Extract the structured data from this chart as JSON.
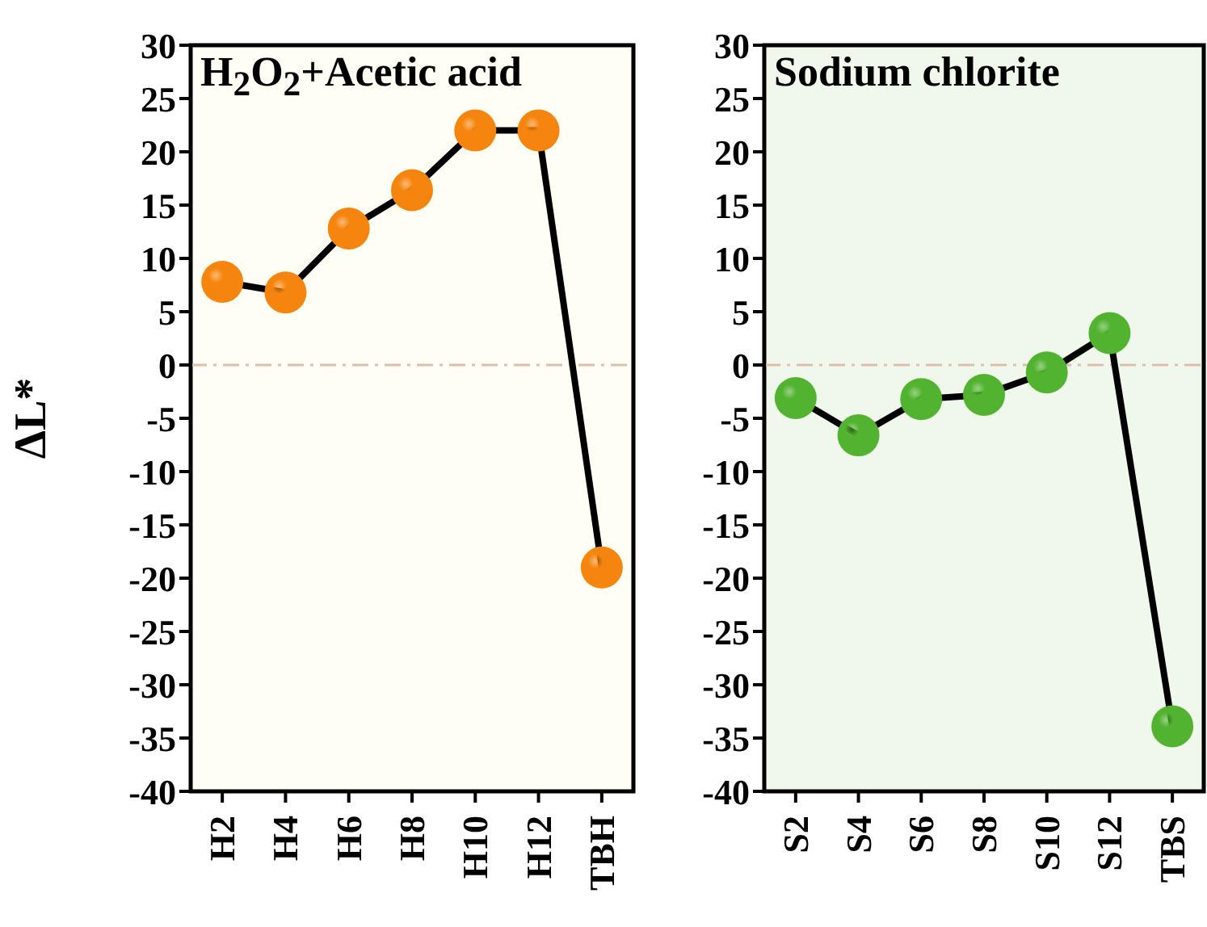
{
  "chart_data": [
    {
      "type": "line",
      "title": "H$_{2}$O$_{2}$+Acetic acid",
      "ylabel": "ΔL*",
      "categories": [
        "H2",
        "H4",
        "H6",
        "H8",
        "H10",
        "H12",
        "TBH"
      ],
      "series": [
        {
          "color": "#f5850f",
          "values": [
            7.8,
            6.8,
            12.8,
            16.4,
            22,
            22,
            -19
          ]
        }
      ],
      "ylim": [
        -40,
        30
      ],
      "yticks": [
        -40,
        -35,
        -30,
        -25,
        -20,
        -15,
        -10,
        -5,
        0,
        5,
        10,
        15,
        20,
        25,
        30
      ],
      "legend": false,
      "marker": "circle",
      "line_style": "solid",
      "ref_lines": [
        {
          "axis": "y",
          "value": 0,
          "color": "#dcbfa8",
          "line_style": "dashed"
        }
      ]
    },
    {
      "type": "line",
      "title": "Sodium chlorite",
      "categories": [
        "S2",
        "S4",
        "S6",
        "S8",
        "S10",
        "S12",
        "TBS"
      ],
      "series": [
        {
          "color": "#52b330",
          "values": [
            -3.1,
            -6.6,
            -3.2,
            -2.8,
            -0.7,
            3,
            -33.9
          ]
        }
      ],
      "ylim": [
        -40,
        30
      ],
      "yticks": [
        -40,
        -35,
        -30,
        -25,
        -20,
        -15,
        -10,
        -5,
        0,
        5,
        10,
        15,
        20,
        25,
        30
      ],
      "legend": false,
      "marker": "circle",
      "line_style": "solid",
      "ref_lines": [
        {
          "axis": "y",
          "value": 0,
          "color": "#dcbfa8",
          "line_style": "dashed"
        }
      ]
    }
  ]
}
